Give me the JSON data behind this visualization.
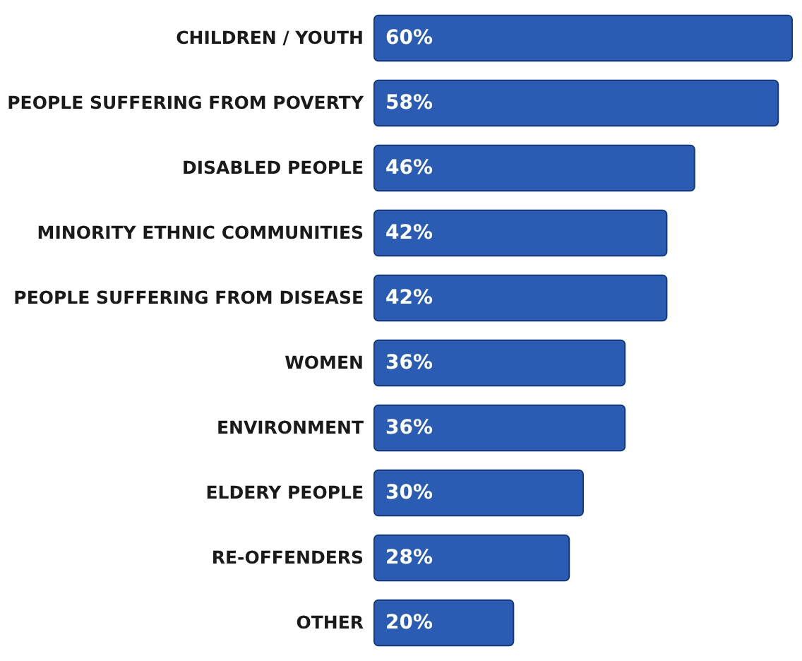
{
  "chart_data": {
    "type": "bar",
    "orientation": "horizontal",
    "categories": [
      "CHILDREN / YOUTH",
      "PEOPLE SUFFERING FROM POVERTY",
      "DISABLED PEOPLE",
      "MINORITY ETHNIC COMMUNITIES",
      "PEOPLE SUFFERING FROM DISEASE",
      "WOMEN",
      "ENVIRONMENT",
      "ELDERY PEOPLE",
      "RE-OFFENDERS",
      "OTHER"
    ],
    "values": [
      60,
      58,
      46,
      42,
      42,
      36,
      36,
      30,
      28,
      20
    ],
    "value_labels": [
      "60%",
      "58%",
      "46%",
      "42%",
      "42%",
      "36%",
      "36%",
      "30%",
      "28%",
      "20%"
    ],
    "color": "#2a5cb3"
  }
}
